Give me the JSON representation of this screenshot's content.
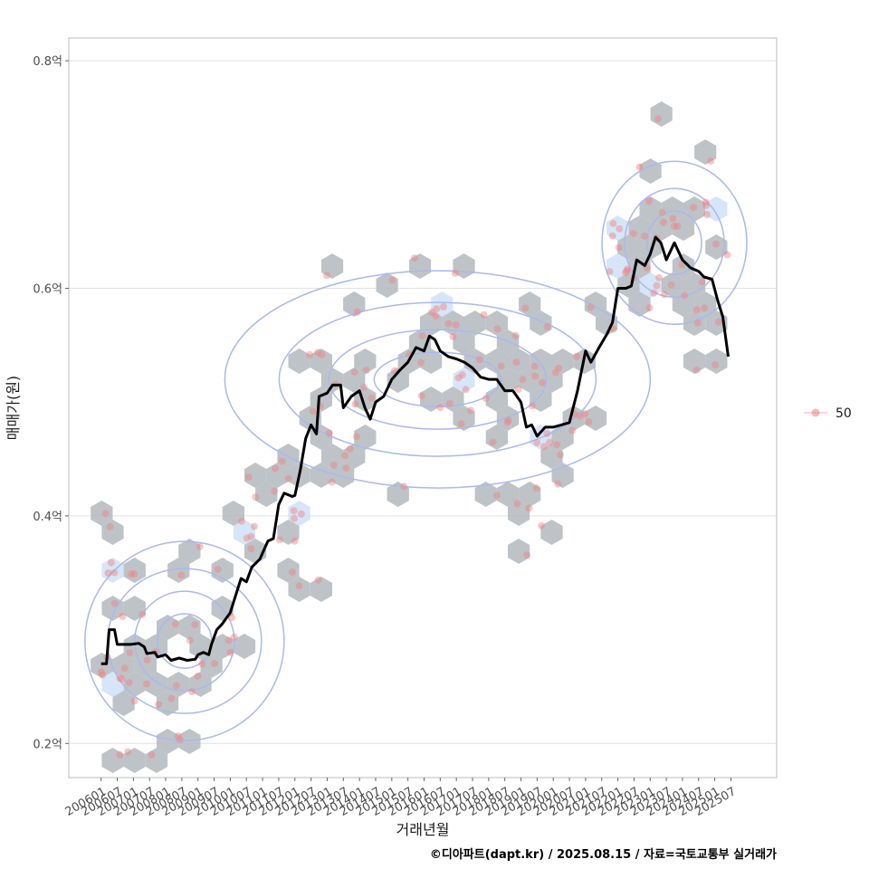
{
  "chart_data": {
    "type": "line",
    "xlabel": "거래년월",
    "ylabel": "매매가(원)",
    "caption": "©디아파트(dapt.kr) / 2025.08.15 / 자료=국토교통부 실거래가",
    "x_tick_labels": [
      "200601",
      "200607",
      "200701",
      "200707",
      "200801",
      "200807",
      "200901",
      "200907",
      "201001",
      "201007",
      "201101",
      "201107",
      "201201",
      "201207",
      "201301",
      "201307",
      "201401",
      "201407",
      "201501",
      "201507",
      "201601",
      "201607",
      "201701",
      "201707",
      "201801",
      "201807",
      "201901",
      "201907",
      "202001",
      "202007",
      "202101",
      "202107",
      "202201",
      "202207",
      "202301",
      "202307",
      "202401",
      "202407",
      "202501",
      "202507"
    ],
    "y_ticks": [
      {
        "value": 0.2,
        "label": "0.2억"
      },
      {
        "value": 0.4,
        "label": "0.4억"
      },
      {
        "value": 0.6,
        "label": "0.6억"
      },
      {
        "value": 0.8,
        "label": "0.8억"
      }
    ],
    "xlim": [
      "2005-01",
      "2026-12"
    ],
    "ylim": [
      0.17,
      0.82
    ],
    "grid": true,
    "legend": {
      "position": "right",
      "entries": [
        {
          "label": "50",
          "color": "#f4a09a"
        }
      ]
    },
    "colors": {
      "line": "#000000",
      "points": "#f08080",
      "hex": "#b3b8bd",
      "hex_light": "#cfe2f7",
      "contour": "#aab8ef",
      "grid": "#e3e3e3",
      "panel_border": "#bbbbbb"
    },
    "series": [
      {
        "type": "trend",
        "points": [
          [
            "2006-01",
            0.27
          ],
          [
            "2006-03",
            0.27
          ],
          [
            "2006-04",
            0.3
          ],
          [
            "2006-06",
            0.3
          ],
          [
            "2006-07",
            0.287
          ],
          [
            "2006-12",
            0.287
          ],
          [
            "2007-03",
            0.288
          ],
          [
            "2007-05",
            0.285
          ],
          [
            "2007-06",
            0.279
          ],
          [
            "2007-09",
            0.28
          ],
          [
            "2007-10",
            0.276
          ],
          [
            "2008-01",
            0.278
          ],
          [
            "2008-03",
            0.273
          ],
          [
            "2008-06",
            0.275
          ],
          [
            "2008-09",
            0.273
          ],
          [
            "2008-12",
            0.274
          ],
          [
            "2009-01",
            0.278
          ],
          [
            "2009-03",
            0.28
          ],
          [
            "2009-05",
            0.278
          ],
          [
            "2009-06",
            0.287
          ],
          [
            "2009-08",
            0.3
          ],
          [
            "2009-10",
            0.305
          ],
          [
            "2010-01",
            0.315
          ],
          [
            "2010-03",
            0.33
          ],
          [
            "2010-05",
            0.345
          ],
          [
            "2010-07",
            0.342
          ],
          [
            "2010-09",
            0.355
          ],
          [
            "2010-12",
            0.362
          ],
          [
            "2011-03",
            0.378
          ],
          [
            "2011-05",
            0.38
          ],
          [
            "2011-06",
            0.395
          ],
          [
            "2011-07",
            0.41
          ],
          [
            "2011-09",
            0.42
          ],
          [
            "2011-12",
            0.417
          ],
          [
            "2012-01",
            0.418
          ],
          [
            "2012-03",
            0.44
          ],
          [
            "2012-05",
            0.468
          ],
          [
            "2012-07",
            0.48
          ],
          [
            "2012-09",
            0.472
          ],
          [
            "2012-10",
            0.505
          ],
          [
            "2013-01",
            0.508
          ],
          [
            "2013-03",
            0.515
          ],
          [
            "2013-06",
            0.515
          ],
          [
            "2013-07",
            0.495
          ],
          [
            "2013-10",
            0.505
          ],
          [
            "2014-01",
            0.51
          ],
          [
            "2014-03",
            0.495
          ],
          [
            "2014-05",
            0.485
          ],
          [
            "2014-07",
            0.5
          ],
          [
            "2014-10",
            0.505
          ],
          [
            "2015-01",
            0.52
          ],
          [
            "2015-04",
            0.528
          ],
          [
            "2015-07",
            0.535
          ],
          [
            "2015-10",
            0.548
          ],
          [
            "2016-01",
            0.545
          ],
          [
            "2016-03",
            0.558
          ],
          [
            "2016-05",
            0.555
          ],
          [
            "2016-07",
            0.545
          ],
          [
            "2016-10",
            0.54
          ],
          [
            "2017-01",
            0.538
          ],
          [
            "2017-04",
            0.535
          ],
          [
            "2017-07",
            0.53
          ],
          [
            "2017-10",
            0.522
          ],
          [
            "2018-01",
            0.52
          ],
          [
            "2018-04",
            0.52
          ],
          [
            "2018-07",
            0.51
          ],
          [
            "2018-10",
            0.51
          ],
          [
            "2019-01",
            0.5
          ],
          [
            "2019-03",
            0.478
          ],
          [
            "2019-05",
            0.48
          ],
          [
            "2019-07",
            0.47
          ],
          [
            "2019-10",
            0.478
          ],
          [
            "2020-01",
            0.478
          ],
          [
            "2020-04",
            0.48
          ],
          [
            "2020-07",
            0.482
          ],
          [
            "2020-10",
            0.51
          ],
          [
            "2021-01",
            0.545
          ],
          [
            "2021-03",
            0.535
          ],
          [
            "2021-06",
            0.548
          ],
          [
            "2021-09",
            0.56
          ],
          [
            "2021-11",
            0.57
          ],
          [
            "2022-01",
            0.6
          ],
          [
            "2022-04",
            0.6
          ],
          [
            "2022-06",
            0.602
          ],
          [
            "2022-08",
            0.625
          ],
          [
            "2022-11",
            0.62
          ],
          [
            "2023-01",
            0.63
          ],
          [
            "2023-03",
            0.645
          ],
          [
            "2023-05",
            0.64
          ],
          [
            "2023-07",
            0.625
          ],
          [
            "2023-10",
            0.64
          ],
          [
            "2024-01",
            0.625
          ],
          [
            "2024-04",
            0.618
          ],
          [
            "2024-07",
            0.615
          ],
          [
            "2024-09",
            0.61
          ],
          [
            "2024-12",
            0.608
          ],
          [
            "2025-02",
            0.59
          ],
          [
            "2025-04",
            0.575
          ],
          [
            "2025-06",
            0.54
          ]
        ]
      }
    ]
  }
}
